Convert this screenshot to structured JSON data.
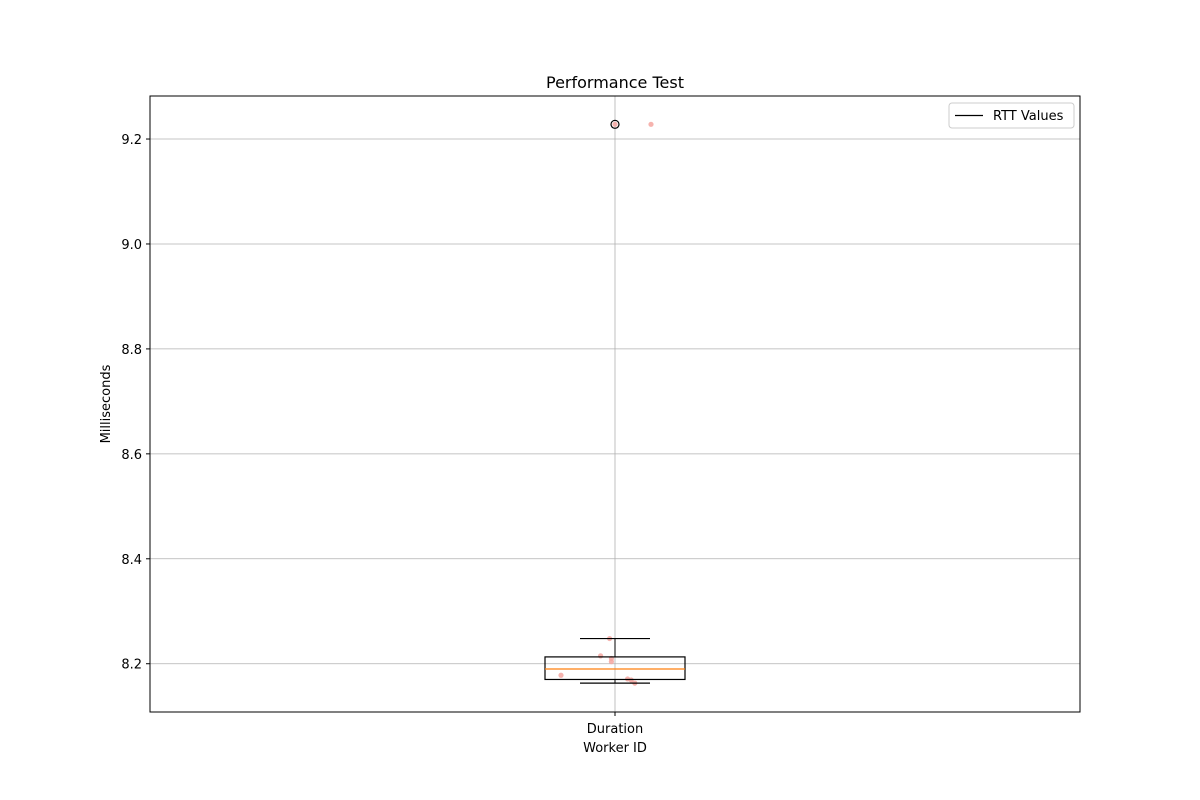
{
  "chart_data": {
    "type": "box",
    "title": "Performance Test",
    "xlabel": "Worker ID",
    "ylabel": "Milliseconds",
    "categories": [
      "Duration"
    ],
    "ylim": [
      8.108,
      9.282
    ],
    "yticks": [
      8.2,
      8.4,
      8.6,
      8.8,
      9.0,
      9.2
    ],
    "ytick_labels": [
      "8.2",
      "8.4",
      "8.6",
      "8.8",
      "9.0",
      "9.2"
    ],
    "grid": true,
    "legend": {
      "placement": "top-right",
      "entries": [
        "RTT Values"
      ]
    },
    "box": {
      "category": "Duration",
      "whisker_low": 8.163,
      "q1": 8.17,
      "median": 8.19,
      "q3": 8.213,
      "whisker_high": 8.248,
      "outliers": [
        9.228
      ]
    },
    "points": [
      {
        "x": 0.0,
        "y": 9.228
      },
      {
        "x": -0.3,
        "y": 8.178
      },
      {
        "x": -0.08,
        "y": 8.215
      },
      {
        "x": -0.02,
        "y": 8.21
      },
      {
        "x": -0.02,
        "y": 8.204
      },
      {
        "x": -0.03,
        "y": 8.248
      },
      {
        "x": 0.07,
        "y": 8.171
      },
      {
        "x": 0.09,
        "y": 8.169
      },
      {
        "x": 0.11,
        "y": 8.163
      },
      {
        "x": 0.2,
        "y": 9.228
      }
    ],
    "colors": {
      "box": "#000000",
      "median": "#ff7f0e",
      "points": "#f4a6a0",
      "grid": "#b0b0b0",
      "outlier": "#000000"
    }
  }
}
